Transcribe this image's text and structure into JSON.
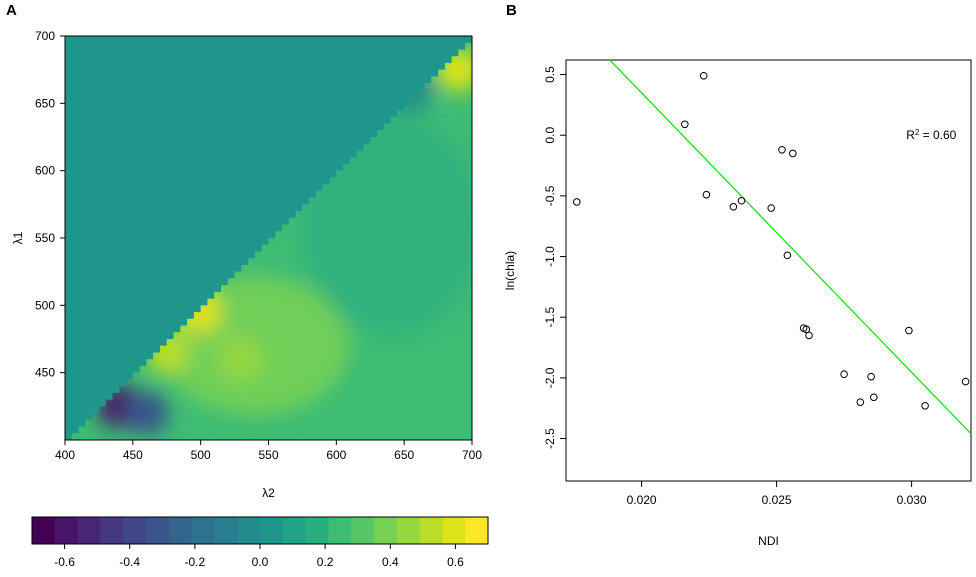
{
  "panel_a": {
    "label": "A"
  },
  "panel_b": {
    "label": "B"
  },
  "chart_data": [
    {
      "type": "heatmap",
      "xlabel": "λ2",
      "ylabel": "λ1",
      "xlim": [
        400,
        700
      ],
      "ylim": [
        400,
        700
      ],
      "x_ticks": [
        400,
        450,
        500,
        550,
        600,
        650,
        700
      ],
      "y_ticks": [
        450,
        500,
        550,
        600,
        650,
        700
      ],
      "upper_triangle_value": 0.0,
      "hotspots": [
        {
          "x": 690,
          "y": 675,
          "value": 0.62
        },
        {
          "x": 500,
          "y": 495,
          "value": 0.6
        },
        {
          "x": 475,
          "y": 465,
          "value": 0.5
        },
        {
          "x": 530,
          "y": 460,
          "value": 0.45
        },
        {
          "x": 440,
          "y": 425,
          "value": -0.62
        },
        {
          "x": 460,
          "y": 420,
          "value": -0.35
        },
        {
          "x": 655,
          "y": 660,
          "value": -0.05
        }
      ],
      "colorbar": {
        "ticks": [
          "-0.6",
          "-0.4",
          "-0.2",
          "0.0",
          "0.2",
          "0.4",
          "0.6"
        ],
        "tick_values": [
          -0.6,
          -0.4,
          -0.2,
          0.0,
          0.2,
          0.4,
          0.6
        ],
        "range": [
          -0.7,
          0.7
        ],
        "n_bins": 20,
        "colors": [
          "#440154",
          "#481467",
          "#482576",
          "#453781",
          "#3f4788",
          "#39558c",
          "#32648e",
          "#2d718e",
          "#287d8e",
          "#238a8d",
          "#1f968b",
          "#20a386",
          "#29af7f",
          "#3dbc74",
          "#56c667",
          "#75d054",
          "#95d840",
          "#bade28",
          "#dde318",
          "#fde725"
        ]
      }
    },
    {
      "type": "scatter",
      "xlabel": "NDI",
      "ylabel": "ln(chla)",
      "xlim": [
        0.0172,
        0.0322
      ],
      "ylim": [
        -2.85,
        0.62
      ],
      "x_ticks": [
        "0.020",
        "0.025",
        "0.030"
      ],
      "x_tick_values": [
        0.02,
        0.025,
        0.03
      ],
      "y_ticks": [
        "0.5",
        "0.0",
        "-0.5",
        "-1.0",
        "-1.5",
        "-2.0",
        "-2.5"
      ],
      "y_tick_values": [
        0.5,
        0.0,
        -0.5,
        -1.0,
        -1.5,
        -2.0,
        -2.5
      ],
      "points": [
        [
          0.0176,
          -0.55
        ],
        [
          0.0216,
          0.09
        ],
        [
          0.0223,
          0.49
        ],
        [
          0.0224,
          -0.49
        ],
        [
          0.0234,
          -0.59
        ],
        [
          0.0237,
          -0.54
        ],
        [
          0.0248,
          -0.6
        ],
        [
          0.0252,
          -0.12
        ],
        [
          0.0254,
          -0.99
        ],
        [
          0.0256,
          -0.15
        ],
        [
          0.026,
          -1.59
        ],
        [
          0.0261,
          -1.6
        ],
        [
          0.0262,
          -1.65
        ],
        [
          0.0275,
          -1.97
        ],
        [
          0.0281,
          -2.2
        ],
        [
          0.0285,
          -1.99
        ],
        [
          0.0286,
          -2.16
        ],
        [
          0.0299,
          -1.61
        ],
        [
          0.0305,
          -2.23
        ],
        [
          0.032,
          -2.03
        ]
      ],
      "fit_line": {
        "color": "#00e000",
        "intercept": 4.955,
        "slope": -230.3
      },
      "annotation": {
        "r2_prefix": "R",
        "r2_sup": "2",
        "r2_suffix": " = 0.60",
        "x": 0.0298,
        "y": 0.0
      }
    }
  ]
}
